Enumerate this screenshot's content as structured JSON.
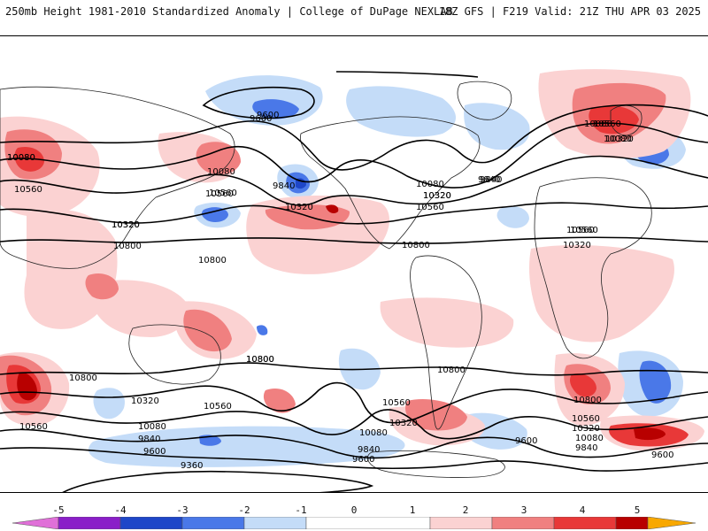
{
  "header": {
    "title": "250mb Height 1981-2010 Standardized Anomaly | College of DuPage NEXLAB",
    "run_info": "18Z GFS | F219 Valid: 21Z THU APR 03 2025"
  },
  "colors": {
    "m5": "#e070d8",
    "m4": "#8a1fc8",
    "m3": "#1e46c8",
    "m2": "#4a78e8",
    "m1": "#c4dcf8",
    "p1": "#fbd2d2",
    "p2": "#f08080",
    "p3": "#e83838",
    "p4": "#b80000",
    "p5": "#f8a800"
  },
  "colorbar": {
    "ticks": [
      "-5",
      "-4",
      "-3",
      "-2",
      "-1",
      "0",
      "1",
      "2",
      "3",
      "4",
      "5"
    ]
  },
  "contours": {
    "labels": [
      "9600",
      "9840",
      "10080",
      "10320",
      "10560",
      "10800",
      "10560",
      "10320",
      "10080",
      "10560",
      "10800",
      "9840",
      "9600",
      "10080",
      "10320",
      "10560",
      "10800",
      "10560",
      "10080",
      "10320",
      "10800",
      "10560",
      "10800",
      "10320",
      "10560",
      "10080",
      "9840",
      "9600",
      "9360",
      "9360",
      "10800",
      "10560",
      "10320",
      "10080",
      "9840",
      "9600",
      "10560",
      "10320",
      "10080",
      "9840",
      "9600",
      "10080",
      "10320",
      "10560",
      "10800",
      "10320",
      "10560",
      "10800",
      "9840",
      "9600",
      "10080",
      "10320"
    ]
  }
}
